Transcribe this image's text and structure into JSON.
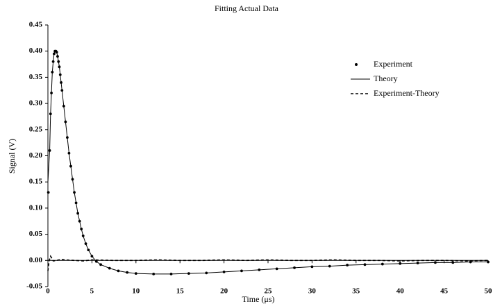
{
  "chart_data": {
    "type": "scatter",
    "title": "Fitting Actual Data",
    "x_label": "Time (μs)",
    "y_label": "Signal (V)",
    "xlim": [
      0,
      50
    ],
    "ylim": [
      -0.05,
      0.45
    ],
    "xticks": [
      0,
      5,
      10,
      15,
      20,
      25,
      30,
      35,
      40,
      45,
      50
    ],
    "yticks": [
      -0.05,
      {
        "value": 0,
        "label": "0.00"
      },
      0.05,
      {
        "value": 0.1,
        "label": "0.10"
      },
      0.15,
      {
        "value": 0.2,
        "label": "0.20"
      },
      0.25,
      {
        "value": 0.3,
        "label": "0.30"
      },
      0.35,
      {
        "value": 0.4,
        "label": "0.40"
      },
      0.45
    ],
    "legend": "upper right",
    "series": [
      {
        "name": "Experiment",
        "kind": "scatter",
        "color": "#000000",
        "x": [
          0.05,
          0.2,
          0.3,
          0.4,
          0.5,
          0.6,
          0.7,
          0.8,
          0.9,
          1.0,
          1.1,
          1.2,
          1.3,
          1.4,
          1.5,
          1.6,
          1.8,
          2.0,
          2.2,
          2.4,
          2.6,
          2.8,
          3.0,
          3.2,
          3.4,
          3.6,
          3.8,
          4.0,
          4.3,
          4.6,
          5.0,
          5.5,
          6,
          7,
          8,
          9,
          10,
          12,
          14,
          16,
          18,
          20,
          22,
          24,
          26,
          28,
          30,
          32,
          34,
          36,
          38,
          40,
          42,
          44,
          46,
          48,
          50
        ],
        "values": [
          0.13,
          0.21,
          0.28,
          0.32,
          0.36,
          0.38,
          0.395,
          0.4,
          0.4,
          0.398,
          0.39,
          0.38,
          0.37,
          0.355,
          0.34,
          0.325,
          0.295,
          0.265,
          0.235,
          0.205,
          0.18,
          0.155,
          0.13,
          0.11,
          0.09,
          0.075,
          0.06,
          0.047,
          0.032,
          0.02,
          0.008,
          -0.002,
          -0.008,
          -0.015,
          -0.02,
          -0.023,
          -0.025,
          -0.026,
          -0.026,
          -0.025,
          -0.024,
          -0.022,
          -0.02,
          -0.018,
          -0.016,
          -0.014,
          -0.012,
          -0.011,
          -0.009,
          -0.008,
          -0.007,
          -0.006,
          -0.005,
          -0.004,
          -0.004,
          -0.003,
          -0.003
        ]
      },
      {
        "name": "Theory",
        "kind": "line",
        "color": "#000000",
        "x": [
          0,
          0.2,
          0.3,
          0.4,
          0.5,
          0.6,
          0.7,
          0.8,
          0.9,
          1.0,
          1.1,
          1.2,
          1.3,
          1.4,
          1.5,
          1.6,
          1.8,
          2.0,
          2.2,
          2.4,
          2.6,
          2.8,
          3.0,
          3.2,
          3.4,
          3.6,
          3.8,
          4.0,
          4.3,
          4.6,
          5.0,
          5.5,
          6,
          7,
          8,
          9,
          10,
          12,
          14,
          16,
          18,
          20,
          22,
          24,
          26,
          28,
          30,
          32,
          34,
          36,
          38,
          40,
          42,
          44,
          46,
          48,
          50
        ],
        "values": [
          0.15,
          0.21,
          0.28,
          0.32,
          0.36,
          0.38,
          0.395,
          0.401,
          0.401,
          0.398,
          0.39,
          0.38,
          0.37,
          0.355,
          0.34,
          0.325,
          0.295,
          0.265,
          0.235,
          0.205,
          0.18,
          0.155,
          0.13,
          0.11,
          0.09,
          0.075,
          0.06,
          0.047,
          0.032,
          0.02,
          0.008,
          -0.002,
          -0.008,
          -0.015,
          -0.02,
          -0.023,
          -0.025,
          -0.026,
          -0.026,
          -0.025,
          -0.024,
          -0.022,
          -0.02,
          -0.018,
          -0.016,
          -0.014,
          -0.012,
          -0.011,
          -0.009,
          -0.008,
          -0.007,
          -0.006,
          -0.005,
          -0.004,
          -0.004,
          -0.003,
          -0.003
        ]
      },
      {
        "name": "Experiment-Theory",
        "kind": "line",
        "dash": "4 3",
        "color": "#000000",
        "x": [
          0,
          0.15,
          0.3,
          0.45,
          0.6,
          1,
          1.5,
          2,
          3,
          4,
          5,
          7.5,
          10,
          12.5,
          15,
          17.5,
          20,
          22.5,
          25,
          27.5,
          30,
          32.5,
          35,
          37.5,
          40,
          42.5,
          45,
          47.5,
          50
        ],
        "values": [
          -0.02,
          0.0,
          0.008,
          0.004,
          -0.001,
          0.0,
          0.002,
          0.001,
          0.0,
          -0.001,
          0.001,
          0.0,
          0.0,
          0.001,
          0.0,
          0.0,
          0.001,
          0.0,
          0.001,
          0.0,
          0.0,
          0.001,
          0.0,
          0.0,
          -0.001,
          0.0,
          0.0,
          -0.001,
          0.0
        ]
      }
    ]
  }
}
